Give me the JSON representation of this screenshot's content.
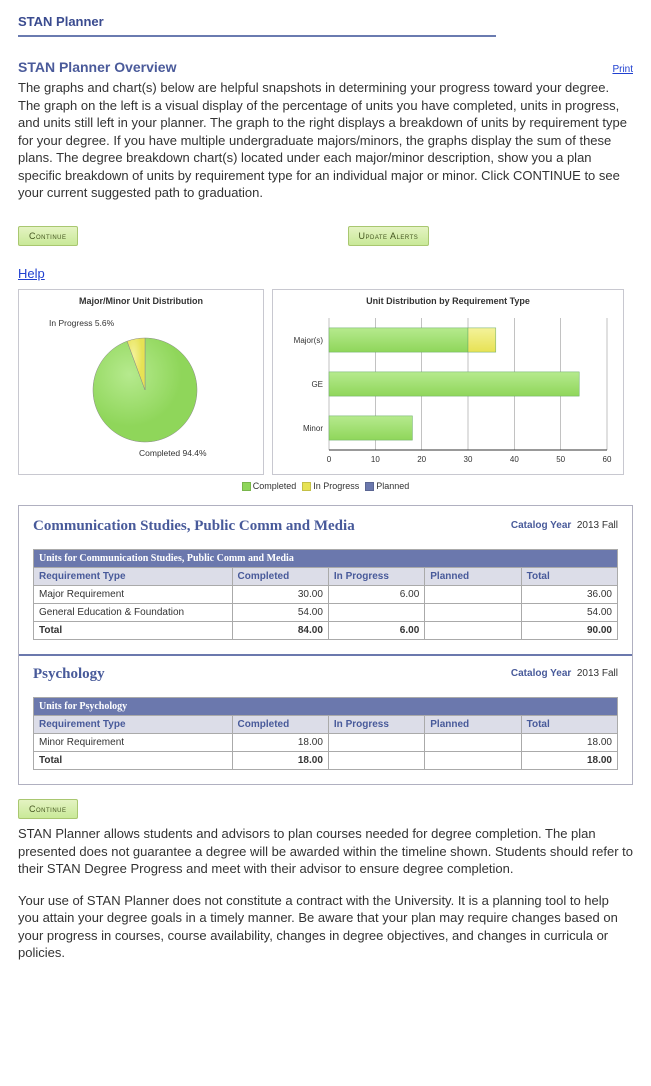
{
  "header": {
    "title": "STAN Planner"
  },
  "overview": {
    "heading": "STAN Planner Overview",
    "print_label": "Print",
    "body": "The graphs and chart(s) below are helpful snapshots in determining your progress toward your degree. The graph on the left is a visual display of the percentage of units you have completed, units in progress, and units still left in your planner. The graph to the right displays a breakdown of units by requirement type for your degree. If you have multiple undergraduate majors/minors, the graphs display the sum of these plans. The degree breakdown chart(s) located under each major/minor description, show you a plan specific breakdown of units by requirement type for an individual major or minor. Click CONTINUE to see your current suggested path to graduation."
  },
  "buttons": {
    "continue": "Continue",
    "update_alerts": "Update Alerts"
  },
  "help_link": "Help",
  "pie_chart": {
    "title": "Major/Minor Unit Distribution",
    "type": "pie",
    "slices": [
      {
        "label": "Completed 94.4%",
        "value": 94.4,
        "color": "#8fd65a"
      },
      {
        "label": "In Progress 5.6%",
        "value": 5.6,
        "color": "#e7e254"
      }
    ],
    "label_completed": "Completed 94.4%",
    "label_inprogress": "In Progress 5.6%",
    "background_color": "#ffffff"
  },
  "bar_chart": {
    "title": "Unit Distribution by Requirement Type",
    "type": "bar",
    "x_max": 60,
    "x_ticks": [
      0,
      10,
      20,
      30,
      40,
      50,
      60
    ],
    "categories": [
      "Major(s)",
      "GE",
      "Minor"
    ],
    "series": [
      {
        "name": "Completed",
        "color": "#8fd65a",
        "values": [
          30,
          54,
          18
        ]
      },
      {
        "name": "In Progress",
        "color": "#e7e254",
        "values": [
          6,
          0,
          0
        ]
      },
      {
        "name": "Planned",
        "color": "#6b78ad",
        "values": [
          0,
          0,
          0
        ]
      }
    ],
    "grid_color": "#999999",
    "background_color": "#ffffff"
  },
  "legend": {
    "items": [
      {
        "label": "Completed",
        "color": "#8fd65a"
      },
      {
        "label": "In Progress",
        "color": "#e7e254"
      },
      {
        "label": "Planned",
        "color": "#6b78ad"
      }
    ]
  },
  "plans": [
    {
      "title": "Communication Studies, Public Comm and Media",
      "catalog_label": "Catalog Year",
      "catalog_value": "2013 Fall",
      "table_title": "Units for Communication Studies, Public Comm and Media",
      "columns": [
        "Requirement Type",
        "Completed",
        "In Progress",
        "Planned",
        "Total"
      ],
      "rows": [
        {
          "label": "Major Requirement",
          "completed": "30.00",
          "in_progress": "6.00",
          "planned": "",
          "total": "36.00"
        },
        {
          "label": "General Education & Foundation",
          "completed": "54.00",
          "in_progress": "",
          "planned": "",
          "total": "54.00"
        }
      ],
      "total_row": {
        "label": "Total",
        "completed": "84.00",
        "in_progress": "6.00",
        "planned": "",
        "total": "90.00"
      }
    },
    {
      "title": "Psychology",
      "catalog_label": "Catalog Year",
      "catalog_value": "2013 Fall",
      "table_title": "Units for Psychology",
      "columns": [
        "Requirement Type",
        "Completed",
        "In Progress",
        "Planned",
        "Total"
      ],
      "rows": [
        {
          "label": "Minor Requirement",
          "completed": "18.00",
          "in_progress": "",
          "planned": "",
          "total": "18.00"
        }
      ],
      "total_row": {
        "label": "Total",
        "completed": "18.00",
        "in_progress": "",
        "planned": "",
        "total": "18.00"
      }
    }
  ],
  "footer": {
    "continue": "Continue",
    "disclaimer1": "STAN Planner allows students and advisors to plan courses needed for degree completion. The plan presented does not guarantee a degree will be awarded within the timeline shown. Students should refer to their STAN Degree Progress and meet with their advisor to ensure degree completion.",
    "disclaimer2": "Your use of STAN Planner does not constitute a contract with the University. It is a planning tool to help you attain your degree goals in a timely manner. Be aware that your plan may require changes based on your progress in courses, course availability, changes in degree objectives, and changes in curricula or policies."
  }
}
